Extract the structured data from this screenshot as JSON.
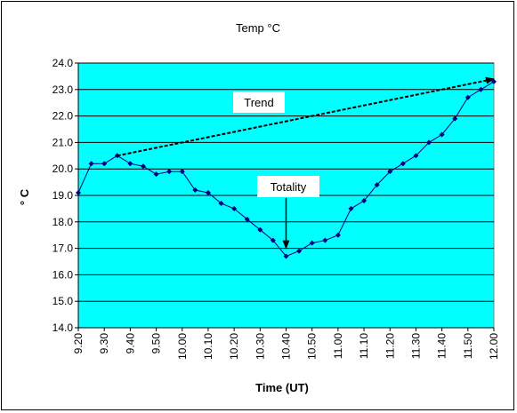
{
  "chart_data": {
    "type": "line",
    "title": "Temp °C",
    "xlabel": "Time (UT)",
    "ylabel": "° C",
    "ylim": [
      14.0,
      24.0
    ],
    "xlim": [
      "9.20",
      "12.00"
    ],
    "grid": true,
    "y_ticks": [
      "14.0",
      "15.0",
      "16.0",
      "17.0",
      "18.0",
      "19.0",
      "20.0",
      "21.0",
      "22.0",
      "23.0",
      "24.0"
    ],
    "x_ticks": [
      "9.20",
      "9.30",
      "9.40",
      "9.50",
      "10.00",
      "10.10",
      "10.20",
      "10.30",
      "10.40",
      "10.50",
      "11.00",
      "11.10",
      "11.20",
      "11.30",
      "11.40",
      "11.50",
      "12.00"
    ],
    "series": [
      {
        "x": [
          "9.20",
          "9.25",
          "9.30",
          "9.35",
          "9.40",
          "9.45",
          "9.50",
          "9.55",
          "10.00",
          "10.05",
          "10.10",
          "10.15",
          "10.20",
          "10.25",
          "10.30",
          "10.35",
          "10.40",
          "10.45",
          "10.50",
          "10.55",
          "11.00",
          "11.05",
          "11.10",
          "11.15",
          "11.20",
          "11.25",
          "11.30",
          "11.35",
          "11.40",
          "11.45",
          "11.50",
          "11.55",
          "12.00"
        ],
        "values": [
          19.1,
          20.2,
          20.2,
          20.5,
          20.2,
          20.1,
          19.8,
          19.9,
          19.9,
          19.2,
          19.1,
          18.7,
          18.5,
          18.1,
          17.7,
          17.3,
          16.7,
          16.9,
          17.2,
          17.3,
          17.5,
          18.5,
          18.8,
          19.4,
          19.9,
          20.2,
          20.5,
          21.0,
          21.3,
          21.9,
          22.7,
          23.0,
          23.3
        ]
      }
    ],
    "trend_line": {
      "from": {
        "x": "9.35",
        "y": 20.5
      },
      "to": {
        "x": "12.00",
        "y": 23.4
      }
    },
    "annotations": [
      {
        "text": "Trend"
      },
      {
        "text": "Totality",
        "points_to": {
          "x": "10.40",
          "y": 17.0
        }
      }
    ],
    "colors": {
      "plot_bg": "#00FFFF",
      "gridline": "#000000",
      "series": "#000080",
      "trend": "#000000"
    }
  }
}
